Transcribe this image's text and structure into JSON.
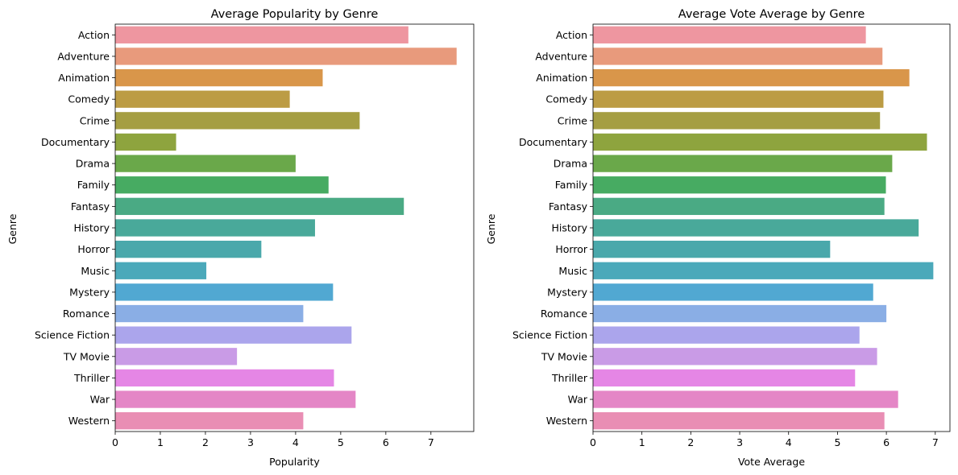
{
  "palette": [
    "#ee96a0",
    "#e89a7c",
    "#d9964a",
    "#bc9c44",
    "#a59e42",
    "#8ea43e",
    "#6aa84a",
    "#47ab62",
    "#4aaa84",
    "#49a99a",
    "#4aa8ab",
    "#4ba9ba",
    "#51a8d2",
    "#8aaee5",
    "#aba5ec",
    "#c99be6",
    "#e586e5",
    "#e486c6",
    "#e98eb4"
  ],
  "chart_data": [
    {
      "type": "bar",
      "orientation": "horizontal",
      "title": "Average Popularity by Genre",
      "xlabel": "Popularity",
      "ylabel": "Genre",
      "xlim": [
        0,
        7.95
      ],
      "xticks": [
        0,
        1,
        2,
        3,
        4,
        5,
        6,
        7
      ],
      "categories": [
        "Action",
        "Adventure",
        "Animation",
        "Comedy",
        "Crime",
        "Documentary",
        "Drama",
        "Family",
        "Fantasy",
        "History",
        "Horror",
        "Music",
        "Mystery",
        "Romance",
        "Science Fiction",
        "TV Movie",
        "Thriller",
        "War",
        "Western"
      ],
      "values": [
        6.5,
        7.57,
        4.6,
        3.87,
        5.42,
        1.35,
        4.0,
        4.73,
        6.4,
        4.43,
        3.24,
        2.02,
        4.83,
        4.17,
        5.24,
        2.7,
        4.85,
        5.33,
        4.17
      ]
    },
    {
      "type": "bar",
      "orientation": "horizontal",
      "title": "Average Vote Average by Genre",
      "xlabel": "Vote Average",
      "ylabel": "Genre",
      "xlim": [
        0,
        7.3
      ],
      "xticks": [
        0,
        1,
        2,
        3,
        4,
        5,
        6,
        7
      ],
      "categories": [
        "Action",
        "Adventure",
        "Animation",
        "Comedy",
        "Crime",
        "Documentary",
        "Drama",
        "Family",
        "Fantasy",
        "History",
        "Horror",
        "Music",
        "Mystery",
        "Romance",
        "Science Fiction",
        "TV Movie",
        "Thriller",
        "War",
        "Western"
      ],
      "values": [
        5.58,
        5.92,
        6.47,
        5.94,
        5.87,
        6.83,
        6.12,
        5.99,
        5.96,
        6.66,
        4.85,
        6.96,
        5.73,
        6.0,
        5.45,
        5.81,
        5.36,
        6.24,
        5.96
      ]
    }
  ]
}
